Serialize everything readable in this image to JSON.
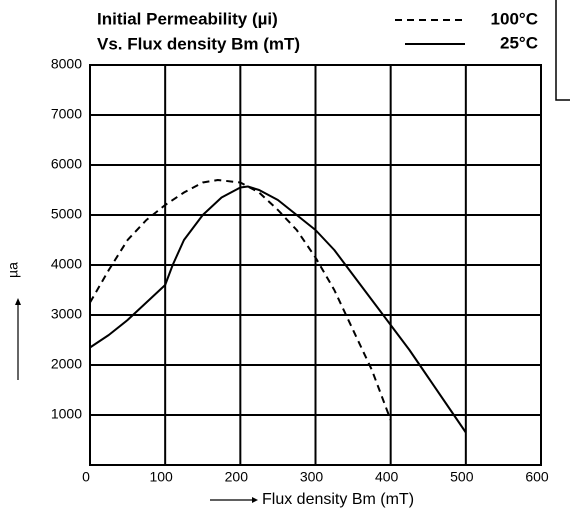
{
  "chart_data": {
    "type": "line",
    "title": "Initial Permeability (µi)",
    "subtitle": "Vs.  Flux density Bm (mT)",
    "x_label": "Flux density Bm (mT)",
    "y_label": "µa",
    "xlim": [
      0,
      600
    ],
    "xticks": [
      0,
      100,
      200,
      300,
      400,
      500,
      600
    ],
    "ylim": [
      0,
      8000
    ],
    "yticks": [
      1000,
      2000,
      3000,
      4000,
      5000,
      6000,
      7000,
      8000
    ],
    "grid": true,
    "series": [
      {
        "name": "100°C",
        "color": "#000000",
        "dash": true,
        "x": [
          0,
          25,
          50,
          75,
          100,
          125,
          150,
          170,
          200,
          225,
          250,
          275,
          300,
          325,
          350,
          375,
          390,
          400
        ],
        "values": [
          3250,
          3900,
          4500,
          4900,
          5200,
          5450,
          5650,
          5700,
          5650,
          5450,
          5100,
          4700,
          4150,
          3500,
          2700,
          1900,
          1300,
          900
        ]
      },
      {
        "name": "25°C",
        "color": "#000000",
        "dash": false,
        "x": [
          0,
          25,
          50,
          75,
          100,
          110,
          125,
          150,
          175,
          200,
          210,
          225,
          250,
          275,
          300,
          325,
          350,
          375,
          400,
          425,
          450,
          475,
          500
        ],
        "values": [
          2350,
          2600,
          2900,
          3250,
          3600,
          4000,
          4500,
          5000,
          5350,
          5550,
          5570,
          5500,
          5300,
          5000,
          4700,
          4300,
          3800,
          3300,
          2800,
          2300,
          1750,
          1200,
          650
        ]
      }
    ]
  }
}
